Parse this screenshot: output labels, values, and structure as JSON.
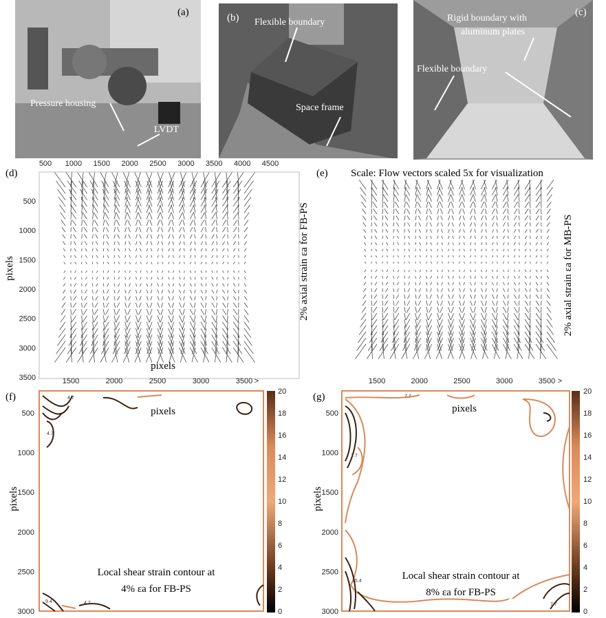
{
  "photos": [
    {
      "label": "(a)",
      "annotations": [
        "Pressure housing",
        "LVDT"
      ]
    },
    {
      "label": "(b)",
      "annotations": [
        "Flexible boundary",
        "Space frame"
      ]
    },
    {
      "label": "(c)",
      "annotations": [
        "Rigid boundary with",
        "aluminum plates",
        "Flexible boundary"
      ]
    }
  ],
  "panel_d": {
    "label": "(d)",
    "xticks": [
      500,
      1000,
      1500,
      2000,
      2500,
      3000,
      3500,
      4000,
      4500
    ],
    "yticks": [
      500,
      1000,
      1500,
      2000,
      2500,
      3000,
      3500
    ],
    "ylabel": "pixels",
    "xlabel": "pixels",
    "caption": "2% axial strain εa for FB-PS"
  },
  "panel_e": {
    "label": "(e)",
    "scale_note": "Scale: Flow vectors scaled 5x for visualization",
    "caption": "2% axial strain εa for MB-PS"
  },
  "panel_f": {
    "label": "(f)",
    "xticks": [
      1500,
      2000,
      2500,
      3000,
      3500
    ],
    "x_end_label": ">",
    "yticks": [
      500,
      1000,
      1500,
      2000,
      2500,
      3000
    ],
    "xlabel": "pixels",
    "ylabel": "pixels",
    "colorbar_ticks": [
      20,
      18,
      16,
      14,
      12,
      10,
      8,
      6,
      4,
      2,
      0
    ],
    "contour_labels": [
      "4.7",
      "9.4",
      "4.7",
      "4.7"
    ],
    "caption": [
      "Local shear strain contour at",
      "4% εa for FB-PS"
    ]
  },
  "panel_g": {
    "label": "(g)",
    "xticks": [
      1500,
      2000,
      2500,
      3000,
      3500
    ],
    "x_end_label": ">",
    "yticks": [
      500,
      1000,
      1500,
      2000,
      2500,
      3000
    ],
    "xlabel": "pixels",
    "ylabel": "pixels",
    "colorbar_ticks": [
      20,
      18,
      16,
      14,
      12,
      10,
      8,
      6,
      4,
      2,
      0
    ],
    "contour_labels": [
      "7.7",
      "7.7",
      "15.4",
      "7.7"
    ],
    "caption": [
      "Local shear strain contour at",
      "8% εa for FB-PS"
    ]
  }
}
